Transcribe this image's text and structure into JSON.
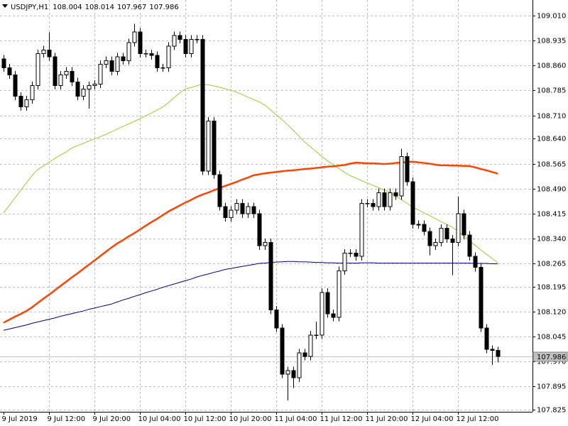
{
  "chart_data": {
    "type": "candlestick",
    "title": "USDJPY,H1",
    "categories": [
      "9 Jul 2019",
      null,
      null,
      null,
      null,
      null,
      null,
      null,
      "9 Jul 12:00",
      null,
      null,
      null,
      null,
      null,
      null,
      null,
      "9 Jul 20:00",
      null,
      null,
      null,
      null,
      null,
      null,
      null,
      "10 Jul 04:00",
      null,
      null,
      null,
      null,
      null,
      null,
      null,
      "10 Jul 12:00",
      null,
      null,
      null,
      null,
      null,
      null,
      null,
      "10 Jul 20:00",
      null,
      null,
      null,
      null,
      null,
      null,
      null,
      "11 Jul 04:00",
      null,
      null,
      null,
      null,
      null,
      null,
      null,
      "11 Jul 12:00",
      null,
      null,
      null,
      null,
      null,
      null,
      null,
      "11 Jul 20:00",
      null,
      null,
      null,
      null,
      null,
      null,
      null,
      "12 Jul 04:00",
      null,
      null,
      null,
      null,
      null,
      null,
      null,
      "12 Jul 12:00",
      null,
      null,
      null,
      null,
      null,
      null,
      null
    ],
    "open": [
      108.88,
      108.853,
      108.832,
      108.768,
      108.736,
      108.757,
      108.8,
      108.896,
      108.907,
      108.886,
      108.8,
      108.832,
      108.843,
      108.811,
      108.768,
      108.789,
      108.8,
      108.804,
      108.864,
      108.875,
      108.843,
      108.886,
      108.875,
      108.929,
      108.961,
      108.896,
      108.896,
      108.89,
      108.853,
      108.853,
      108.918,
      108.95,
      108.939,
      108.896,
      108.939,
      108.939,
      108.543,
      108.693,
      108.532,
      108.436,
      108.403,
      108.425,
      108.446,
      108.414,
      108.436,
      108.414,
      108.318,
      108.328,
      108.125,
      108.071,
      107.932,
      107.943,
      107.921,
      107.996,
      107.986,
      108.05,
      108.05,
      108.178,
      108.114,
      108.103,
      108.243,
      108.296,
      108.296,
      108.286,
      108.446,
      108.446,
      108.436,
      108.478,
      108.436,
      108.478,
      108.468,
      108.586,
      108.511,
      108.382,
      108.382,
      108.361,
      108.318,
      108.328,
      108.371,
      108.339,
      108.328,
      108.414,
      108.35,
      108.286,
      108.253,
      108.071,
      108.007,
      108.004
    ],
    "high": [
      108.892,
      108.865,
      108.844,
      108.78,
      108.769,
      108.812,
      108.908,
      108.919,
      108.96,
      108.898,
      108.844,
      108.855,
      108.855,
      108.823,
      108.801,
      108.812,
      108.816,
      108.876,
      108.887,
      108.887,
      108.898,
      108.898,
      108.941,
      108.985,
      108.973,
      108.908,
      108.908,
      108.902,
      108.865,
      108.93,
      108.962,
      108.962,
      108.951,
      108.951,
      108.951,
      108.951,
      108.705,
      108.705,
      108.544,
      108.448,
      108.437,
      108.458,
      108.458,
      108.448,
      108.448,
      108.426,
      108.34,
      108.34,
      108.137,
      108.083,
      107.955,
      107.955,
      108.008,
      108.008,
      108.062,
      108.09,
      108.19,
      108.19,
      108.126,
      108.255,
      108.308,
      108.308,
      108.308,
      108.458,
      108.458,
      108.458,
      108.49,
      108.49,
      108.49,
      108.49,
      108.61,
      108.598,
      108.523,
      108.394,
      108.394,
      108.373,
      108.34,
      108.383,
      108.383,
      108.351,
      108.466,
      108.426,
      108.362,
      108.298,
      108.265,
      108.083,
      108.019,
      108.014
    ],
    "low": [
      108.841,
      108.82,
      108.756,
      108.724,
      108.724,
      108.745,
      108.788,
      108.884,
      108.874,
      108.788,
      108.788,
      108.82,
      108.799,
      108.756,
      108.756,
      108.73,
      108.788,
      108.792,
      108.852,
      108.831,
      108.831,
      108.863,
      108.863,
      108.917,
      108.884,
      108.884,
      108.878,
      108.841,
      108.841,
      108.841,
      108.906,
      108.927,
      108.884,
      108.884,
      108.927,
      108.531,
      108.531,
      108.52,
      108.424,
      108.391,
      108.391,
      108.413,
      108.402,
      108.402,
      108.402,
      108.306,
      108.306,
      108.113,
      108.059,
      107.92,
      107.853,
      107.89,
      107.909,
      107.974,
      107.974,
      108.038,
      108.038,
      108.102,
      108.091,
      108.091,
      108.231,
      108.284,
      108.274,
      108.274,
      108.434,
      108.424,
      108.424,
      108.424,
      108.424,
      108.456,
      108.456,
      108.499,
      108.37,
      108.37,
      108.349,
      108.29,
      108.306,
      108.316,
      108.327,
      108.23,
      108.316,
      108.338,
      108.274,
      108.241,
      108.059,
      107.995,
      107.96,
      107.967
    ],
    "close": [
      108.853,
      108.832,
      108.768,
      108.736,
      108.757,
      108.8,
      108.896,
      108.907,
      108.886,
      108.8,
      108.832,
      108.843,
      108.811,
      108.768,
      108.789,
      108.8,
      108.804,
      108.864,
      108.875,
      108.843,
      108.886,
      108.875,
      108.929,
      108.961,
      108.896,
      108.896,
      108.89,
      108.853,
      108.853,
      108.918,
      108.95,
      108.939,
      108.896,
      108.939,
      108.939,
      108.543,
      108.693,
      108.532,
      108.436,
      108.403,
      108.425,
      108.446,
      108.414,
      108.436,
      108.414,
      108.318,
      108.328,
      108.125,
      108.071,
      107.932,
      107.943,
      107.921,
      107.996,
      107.986,
      108.05,
      108.05,
      108.178,
      108.114,
      108.103,
      108.243,
      108.296,
      108.296,
      108.286,
      108.446,
      108.446,
      108.436,
      108.478,
      108.436,
      108.478,
      108.468,
      108.586,
      108.511,
      108.382,
      108.382,
      108.361,
      108.318,
      108.328,
      108.371,
      108.339,
      108.328,
      108.414,
      108.35,
      108.286,
      108.253,
      108.071,
      108.007,
      108.004,
      107.986
    ],
    "up_color": "#ffffff",
    "down_color": "#000000",
    "series": [
      {
        "color": "#9acd32",
        "width": 1,
        "values": [
          108.417,
          108.439,
          108.462,
          108.484,
          108.507,
          108.529,
          108.547,
          108.558,
          108.569,
          108.58,
          108.591,
          108.6,
          108.612,
          108.619,
          108.626,
          108.633,
          108.639,
          108.646,
          108.653,
          108.661,
          108.669,
          108.677,
          108.684,
          108.692,
          108.7,
          108.709,
          108.717,
          108.726,
          108.735,
          108.748,
          108.763,
          108.777,
          108.79,
          108.794,
          108.799,
          108.804,
          108.802,
          108.799,
          108.795,
          108.79,
          108.786,
          108.78,
          108.773,
          108.765,
          108.758,
          108.751,
          108.741,
          108.727,
          108.712,
          108.698,
          108.682,
          108.665,
          108.648,
          108.63,
          108.616,
          108.602,
          108.587,
          108.574,
          108.562,
          108.551,
          108.539,
          108.529,
          108.522,
          108.514,
          108.507,
          108.5,
          108.493,
          108.486,
          108.479,
          108.468,
          108.457,
          108.446,
          108.435,
          108.426,
          108.417,
          108.409,
          108.4,
          108.391,
          108.383,
          108.374,
          108.362,
          108.348,
          108.334,
          108.32,
          108.306,
          108.293,
          108.28,
          108.267
        ]
      },
      {
        "color": "#ff4500",
        "width": 2.5,
        "values": [
          108.087,
          108.096,
          108.105,
          108.113,
          108.122,
          108.133,
          108.146,
          108.159,
          108.171,
          108.184,
          108.197,
          108.21,
          108.223,
          108.235,
          108.248,
          108.261,
          108.274,
          108.287,
          108.3,
          108.313,
          108.325,
          108.335,
          108.346,
          108.356,
          108.367,
          108.378,
          108.389,
          108.399,
          108.41,
          108.421,
          108.43,
          108.439,
          108.448,
          108.456,
          108.465,
          108.472,
          108.478,
          108.485,
          108.491,
          108.498,
          108.504,
          108.51,
          108.517,
          108.523,
          108.53,
          108.533,
          108.536,
          108.538,
          108.54,
          108.542,
          108.544,
          108.545,
          108.547,
          108.549,
          108.55,
          108.552,
          108.554,
          108.556,
          108.557,
          108.559,
          108.561,
          108.565,
          108.568,
          108.567,
          108.566,
          108.566,
          108.565,
          108.564,
          108.565,
          108.567,
          108.568,
          108.57,
          108.571,
          108.569,
          108.567,
          108.565,
          108.562,
          108.56,
          108.56,
          108.559,
          108.559,
          108.558,
          108.558,
          108.554,
          108.549,
          108.545,
          108.54,
          108.535
        ]
      },
      {
        "color": "#000080",
        "width": 1,
        "values": [
          108.064,
          108.068,
          108.072,
          108.076,
          108.08,
          108.085,
          108.089,
          108.093,
          108.097,
          108.101,
          108.106,
          108.11,
          108.114,
          108.118,
          108.122,
          108.127,
          108.131,
          108.135,
          108.139,
          108.143,
          108.149,
          108.155,
          108.16,
          108.166,
          108.171,
          108.177,
          108.182,
          108.187,
          108.193,
          108.198,
          108.203,
          108.208,
          108.213,
          108.218,
          108.224,
          108.229,
          108.233,
          108.238,
          108.242,
          108.247,
          108.25,
          108.253,
          108.256,
          108.259,
          108.262,
          108.265,
          108.266,
          108.268,
          108.269,
          108.27,
          108.271,
          108.271,
          108.27,
          108.27,
          108.269,
          108.268,
          108.268,
          108.267,
          108.267,
          108.266,
          108.266,
          108.266,
          108.266,
          108.267,
          108.267,
          108.267,
          108.266,
          108.266,
          108.266,
          108.266,
          108.266,
          108.266,
          108.266,
          108.266,
          108.266,
          108.266,
          108.266,
          108.266,
          108.266,
          108.266,
          108.266,
          108.266,
          108.266,
          108.265,
          108.265,
          108.265,
          108.264,
          108.264
        ]
      }
    ],
    "ylim": [
      107.819,
      109.057
    ],
    "yticks": [
      {
        "value": 109.01,
        "label": "109.010"
      },
      108.935,
      {
        "value": 108.86,
        "label": "108.860"
      },
      108.785,
      {
        "value": 108.71,
        "label": "108.710"
      },
      {
        "value": 108.64,
        "label": "108.640"
      },
      108.565,
      {
        "value": 108.49,
        "label": "108.490"
      },
      108.415,
      {
        "value": 108.34,
        "label": "108.340"
      },
      108.265,
      108.195,
      {
        "value": 108.12,
        "label": "108.120"
      },
      108.045,
      {
        "value": 107.97,
        "label": "107.970"
      },
      107.895,
      107.825
    ],
    "grid": true
  }
}
